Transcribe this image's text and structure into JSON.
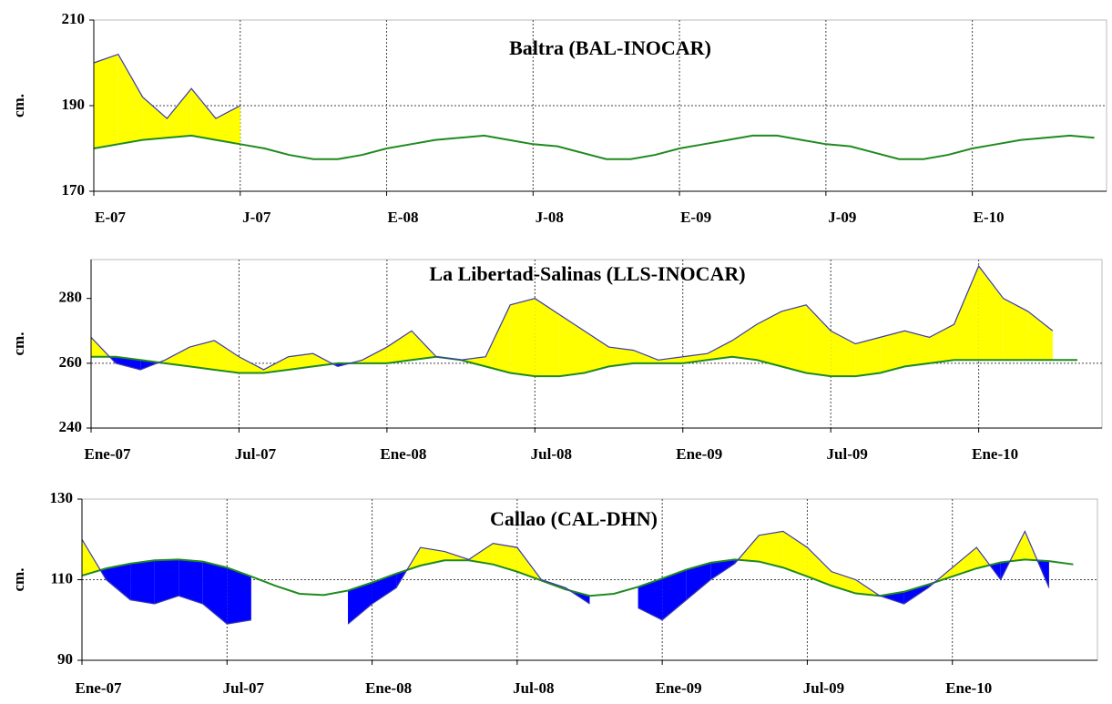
{
  "chart_data": [
    {
      "type": "line",
      "title": "Baltra (BAL-INOCAR)",
      "y_label": "cm.",
      "x": [
        0,
        1,
        2,
        3,
        4,
        5,
        6,
        7,
        8,
        9,
        10,
        11,
        12,
        13,
        14,
        15,
        16,
        17,
        18,
        19,
        20,
        21,
        22,
        23,
        24,
        25,
        26,
        27,
        28,
        29,
        30,
        31,
        32,
        33,
        34,
        35,
        36,
        37,
        38,
        39,
        40,
        41
      ],
      "xlim": [
        0,
        41.5
      ],
      "xticks": [
        {
          "value": 0,
          "label": "E-07"
        },
        {
          "value": 6,
          "label": "J-07"
        },
        {
          "value": 12,
          "label": "E-08"
        },
        {
          "value": 18,
          "label": "J-08"
        },
        {
          "value": 24,
          "label": "E-09"
        },
        {
          "value": 30,
          "label": "J-09"
        },
        {
          "value": 36,
          "label": "E-10"
        }
      ],
      "ylim": [
        170,
        210
      ],
      "yticks": [
        170,
        190,
        210
      ],
      "grid": true,
      "fill_above_color": "#ffff00",
      "fill_below_color": "#0000ff",
      "series": [
        {
          "color": "#3a3ab0",
          "values": [
            200,
            202,
            192,
            187,
            194,
            187,
            190,
            null,
            null,
            null,
            null,
            null,
            null,
            null,
            null,
            null,
            null,
            null,
            null,
            null,
            null,
            null,
            null,
            null,
            null,
            null,
            null,
            null,
            null,
            null,
            null,
            null,
            null,
            null,
            null,
            null,
            null,
            null,
            null,
            null,
            null,
            null
          ]
        },
        {
          "color": "#1f8a1f",
          "values": [
            180,
            181,
            182,
            182.5,
            183,
            182,
            181,
            180,
            178.5,
            177.5,
            177.5,
            178.5,
            180,
            181,
            182,
            182.5,
            183,
            182,
            181,
            180.5,
            179,
            177.5,
            177.5,
            178.5,
            180,
            181,
            182,
            183,
            183,
            182,
            181,
            180.5,
            179,
            177.5,
            177.5,
            178.5,
            180,
            181,
            182,
            182.5,
            183,
            182.5
          ]
        }
      ]
    },
    {
      "type": "line",
      "title": "La Libertad-Salinas (LLS-INOCAR)",
      "y_label": "cm.",
      "x": [
        0,
        1,
        2,
        3,
        4,
        5,
        6,
        7,
        8,
        9,
        10,
        11,
        12,
        13,
        14,
        15,
        16,
        17,
        18,
        19,
        20,
        21,
        22,
        23,
        24,
        25,
        26,
        27,
        28,
        29,
        30,
        31,
        32,
        33,
        34,
        35,
        36,
        37,
        38,
        39,
        40
      ],
      "xlim": [
        0,
        41
      ],
      "xticks": [
        {
          "value": 0,
          "label": "Ene-07"
        },
        {
          "value": 6,
          "label": "Jul-07"
        },
        {
          "value": 12,
          "label": "Ene-08"
        },
        {
          "value": 18,
          "label": "Jul-08"
        },
        {
          "value": 24,
          "label": "Ene-09"
        },
        {
          "value": 30,
          "label": "Jul-09"
        },
        {
          "value": 36,
          "label": "Ene-10"
        }
      ],
      "ylim": [
        240,
        292
      ],
      "yticks": [
        240,
        260,
        280
      ],
      "grid": true,
      "fill_above_color": "#ffff00",
      "fill_below_color": "#0000ff",
      "series": [
        {
          "color": "#3a3ab0",
          "values": [
            268,
            260,
            258,
            261,
            265,
            267,
            262,
            258,
            262,
            263,
            259,
            261,
            265,
            270,
            262,
            261,
            262,
            278,
            280,
            275,
            270,
            265,
            264,
            261,
            262,
            263,
            267,
            272,
            276,
            278,
            270,
            266,
            268,
            270,
            268,
            272,
            290,
            280,
            276,
            270,
            null
          ]
        },
        {
          "color": "#1f8a1f",
          "values": [
            262,
            262,
            261,
            260,
            259,
            258,
            257,
            257,
            258,
            259,
            260,
            260,
            260,
            261,
            262,
            261,
            259,
            257,
            256,
            256,
            257,
            259,
            260,
            260,
            260,
            261,
            262,
            261,
            259,
            257,
            256,
            256,
            257,
            259,
            260,
            261,
            261,
            261,
            261,
            261,
            261
          ]
        }
      ]
    },
    {
      "type": "line",
      "title": "Callao (CAL-DHN)",
      "y_label": "cm.",
      "x": [
        0,
        1,
        2,
        3,
        4,
        5,
        6,
        7,
        8,
        9,
        10,
        11,
        12,
        13,
        14,
        15,
        16,
        17,
        18,
        19,
        20,
        21,
        22,
        23,
        24,
        25,
        26,
        27,
        28,
        29,
        30,
        31,
        32,
        33,
        34,
        35,
        36,
        37,
        38,
        39,
        40,
        41
      ],
      "xlim": [
        0,
        42
      ],
      "xticks": [
        {
          "value": 0,
          "label": "Ene-07"
        },
        {
          "value": 6,
          "label": "Jul-07"
        },
        {
          "value": 12,
          "label": "Ene-08"
        },
        {
          "value": 18,
          "label": "Jul-08"
        },
        {
          "value": 24,
          "label": "Ene-09"
        },
        {
          "value": 30,
          "label": "Jul-09"
        },
        {
          "value": 36,
          "label": "Ene-10"
        }
      ],
      "ylim": [
        90,
        130
      ],
      "yticks": [
        90,
        110,
        130
      ],
      "grid": true,
      "fill_above_color": "#ffff00",
      "fill_below_color": "#0000ff",
      "series": [
        {
          "color": "#3a3ab0",
          "values": [
            120,
            110,
            105,
            104,
            106,
            104,
            99,
            100,
            null,
            null,
            null,
            99,
            104,
            108,
            118,
            117,
            115,
            119,
            118,
            110,
            108,
            104,
            null,
            103,
            100,
            105,
            110,
            114,
            121,
            122,
            118,
            112,
            110,
            106,
            104,
            108,
            113,
            118,
            110,
            122,
            108,
            null
          ]
        },
        {
          "color": "#1f8a1f",
          "values": [
            111,
            112.8,
            114,
            114.8,
            115,
            114.5,
            113,
            110.8,
            108.5,
            106.5,
            106.2,
            107.3,
            109.3,
            111.5,
            113.5,
            114.8,
            114.8,
            113.8,
            112,
            109.8,
            107.6,
            106,
            106.5,
            108.2,
            110.3,
            112.5,
            114.2,
            115,
            114.5,
            113,
            110.8,
            108.5,
            106.6,
            106,
            107,
            108.8,
            110.8,
            112.8,
            114.3,
            115,
            114.6,
            113.8
          ]
        }
      ]
    }
  ]
}
